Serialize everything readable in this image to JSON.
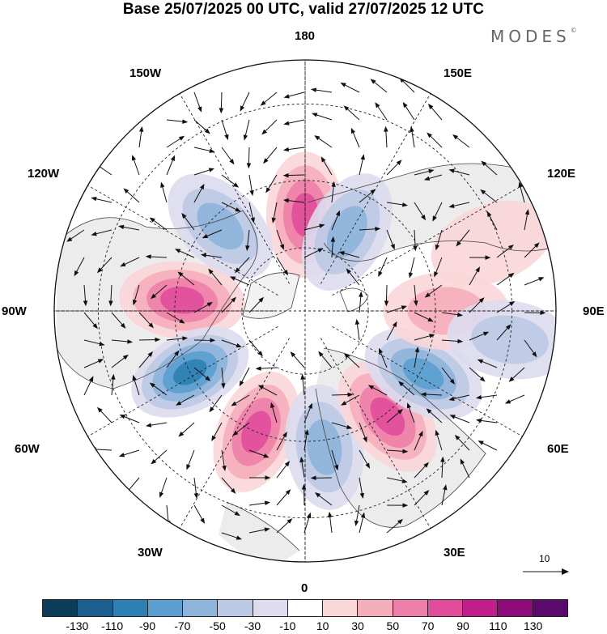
{
  "title": "Base 25/07/2025 00 UTC, valid 27/07/2025 12 UTC",
  "logo": {
    "text": "MODES",
    "mark": "©"
  },
  "longitude_labels": {
    "n180": "180",
    "e150": "150E",
    "e120": "120E",
    "e90": "90E",
    "e60": "60E",
    "e30": "30E",
    "s0": "0",
    "w30": "30W",
    "w60": "60W",
    "w90": "90W",
    "w120": "120W",
    "w150": "150W"
  },
  "vector_scale": {
    "label": "10",
    "icon": "arrow-right-icon"
  },
  "colorbar": {
    "colors": [
      "#0d3b5a",
      "#1a5f8e",
      "#2e7fb3",
      "#5a9fcf",
      "#8eb4da",
      "#bcc9e4",
      "#dcdcee",
      "#ffffff",
      "#f9d6d8",
      "#f5aebb",
      "#ee7fa8",
      "#e14c9a",
      "#c21d8d",
      "#8f0b7c",
      "#5a0a6b"
    ],
    "ticks": [
      "-130",
      "-110",
      "-90",
      "-70",
      "-50",
      "-30",
      "-10",
      "10",
      "30",
      "50",
      "70",
      "90",
      "110",
      "130"
    ]
  },
  "map": {
    "projection": "north-polar-stereographic",
    "anomalies": [
      {
        "lon": -180,
        "lat": 60,
        "value": 80
      },
      {
        "lon": 152,
        "lat": 62,
        "value": -50
      },
      {
        "lon": -135,
        "lat": 53,
        "value": -65
      },
      {
        "lon": -95,
        "lat": 52,
        "value": 85
      },
      {
        "lon": -62,
        "lat": 50,
        "value": -90
      },
      {
        "lon": -22,
        "lat": 50,
        "value": 85
      },
      {
        "lon": 8,
        "lat": 48,
        "value": -60
      },
      {
        "lon": 38,
        "lat": 49,
        "value": 80
      },
      {
        "lon": 62,
        "lat": 49,
        "value": -80
      },
      {
        "lon": 90,
        "lat": 47,
        "value": 40
      },
      {
        "lon": 110,
        "lat": 32,
        "value": 15
      },
      {
        "lon": 82,
        "lat": 30,
        "value": -30
      }
    ]
  }
}
